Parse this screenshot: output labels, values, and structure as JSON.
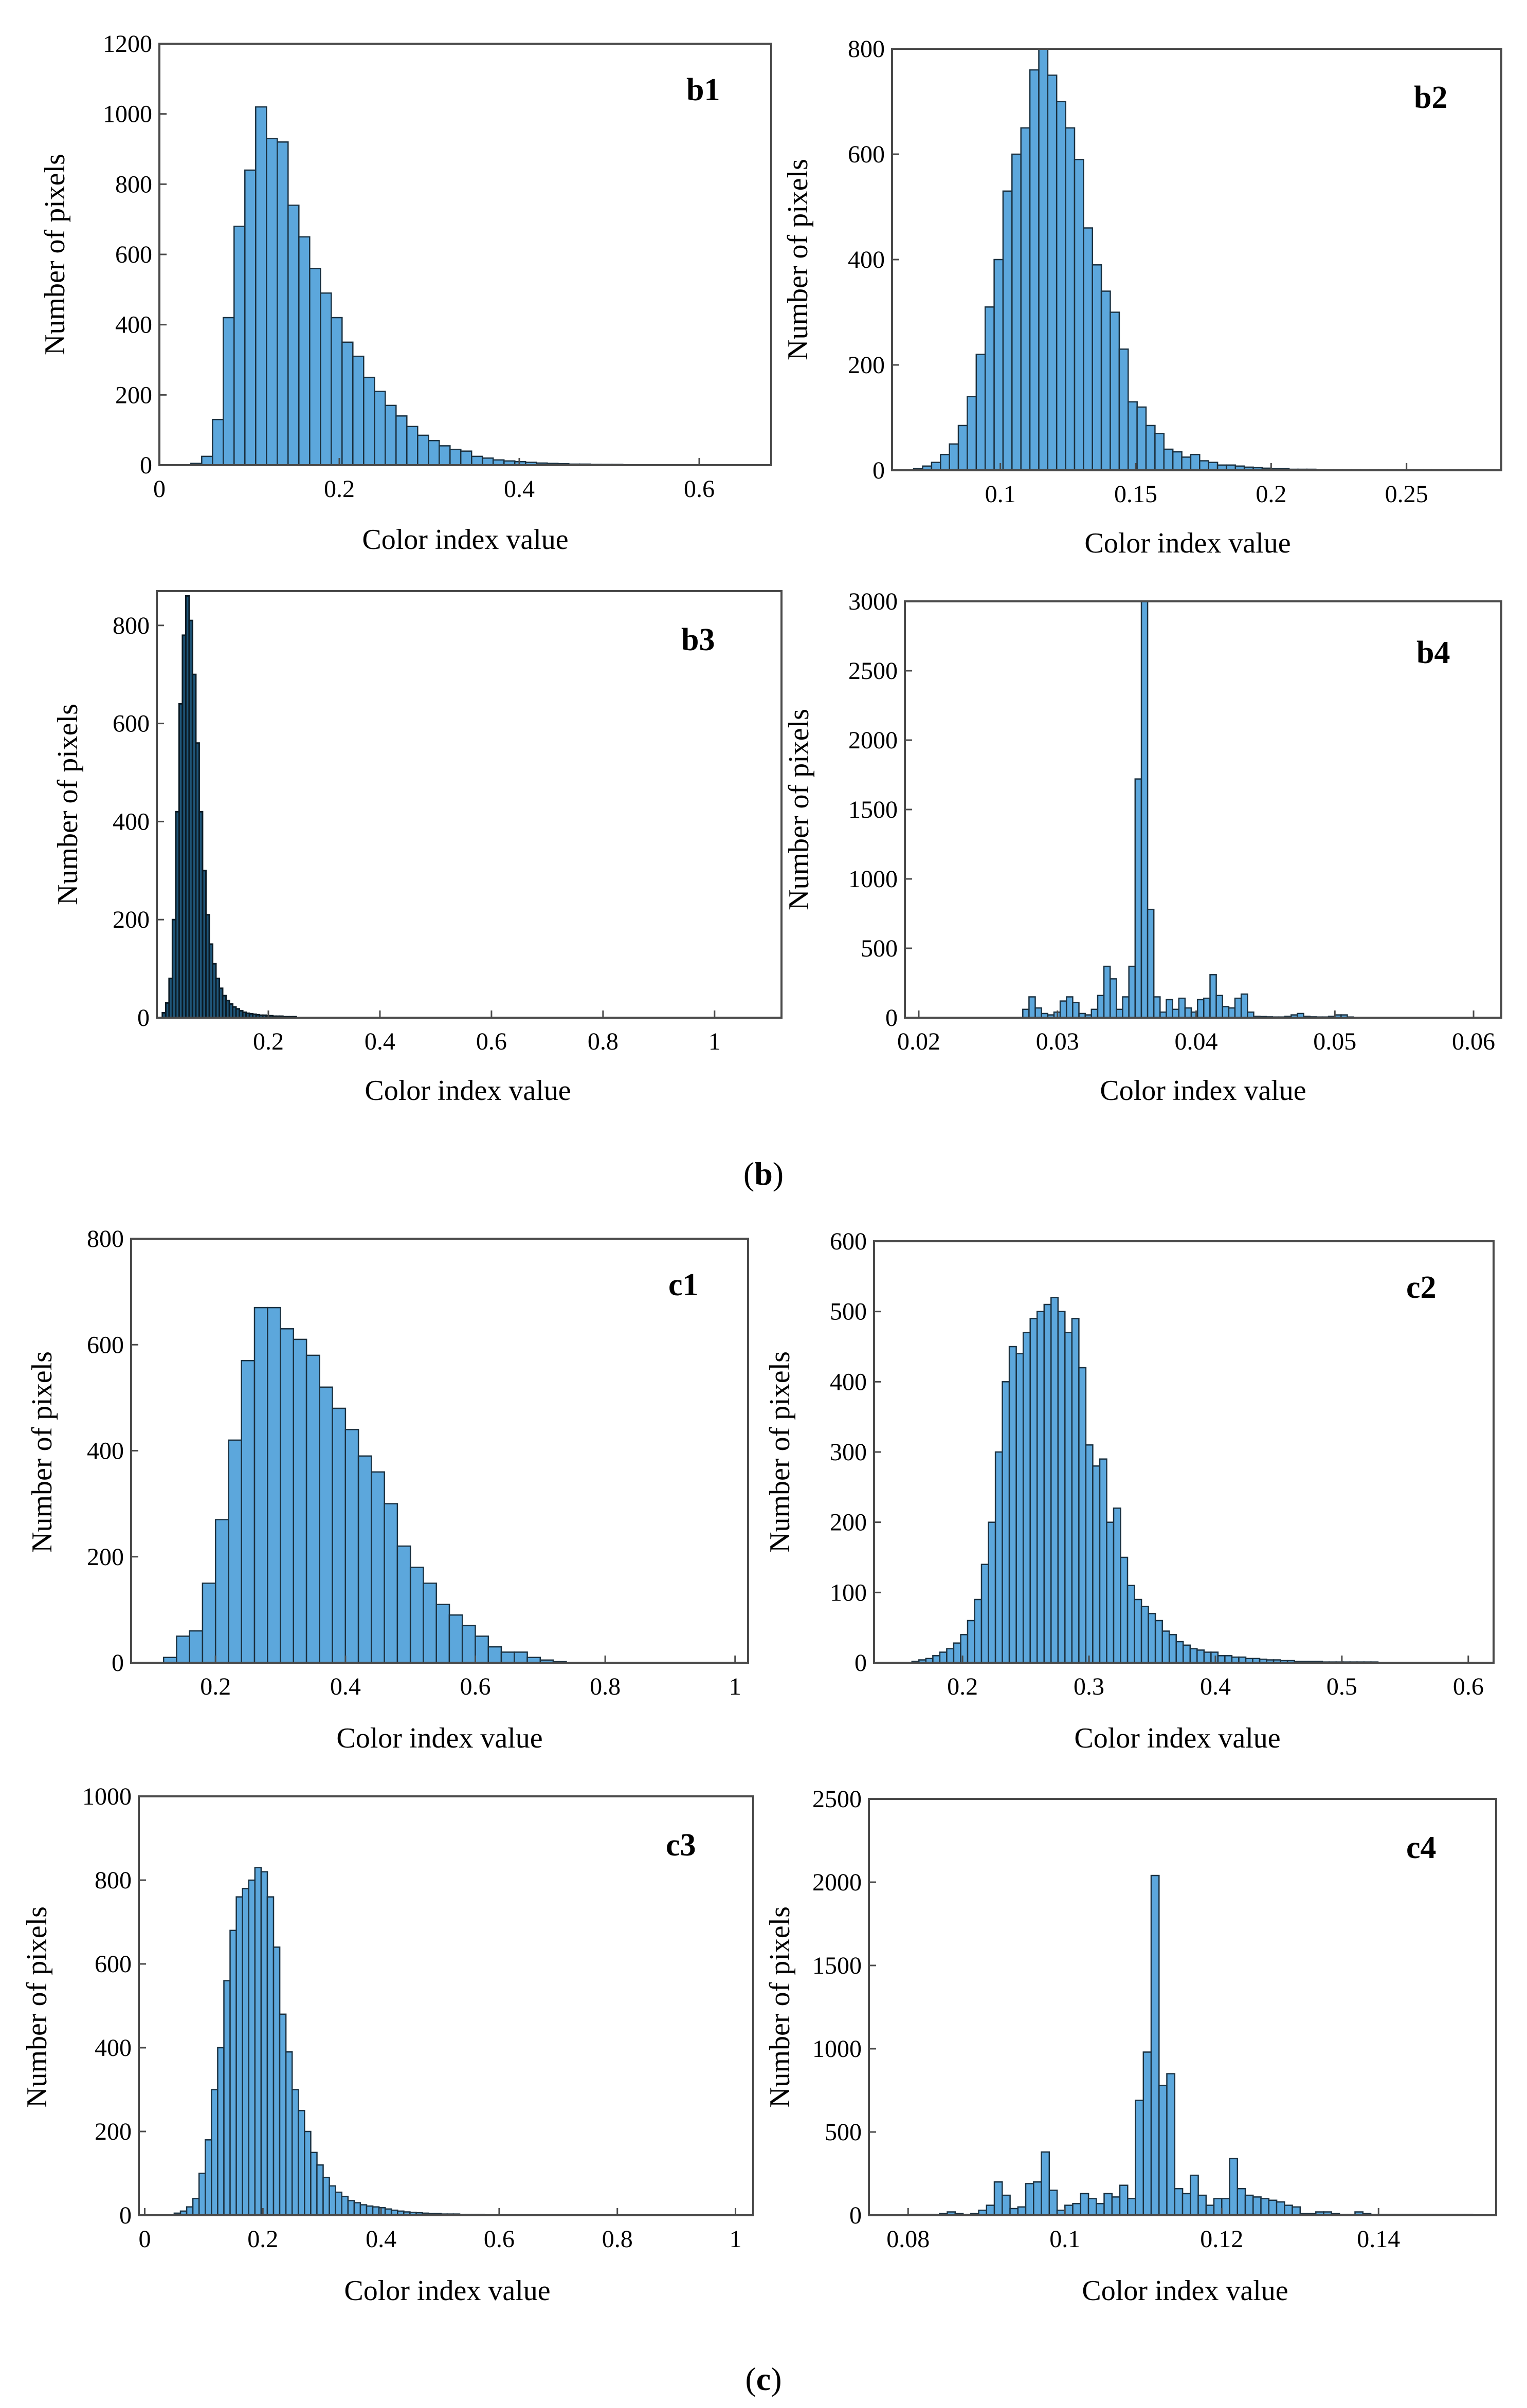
{
  "figure": {
    "caption_b_open": "(",
    "caption_b_letter": "b",
    "caption_b_close": ")",
    "caption_c_open": "(",
    "caption_c_letter": "c",
    "caption_c_close": ")"
  },
  "chart_data": [
    {
      "id": "b1",
      "type": "bar",
      "panel_label": "b1",
      "xlabel": "Color index value",
      "ylabel": "Number of pixels",
      "xlim": [
        0,
        0.68
      ],
      "ylim": [
        0,
        1200
      ],
      "xticks": [
        0,
        0.2,
        0.4,
        0.6
      ],
      "xtick_labels": [
        "0",
        "0.2",
        "0.4",
        "0.6"
      ],
      "yticks": [
        0,
        200,
        400,
        600,
        800,
        1000,
        1200
      ],
      "ytick_labels": [
        "0",
        "200",
        "400",
        "600",
        "800",
        "1000",
        "1200"
      ],
      "bin_start": 0.035,
      "bin_width": 0.012,
      "values": [
        5,
        25,
        130,
        420,
        680,
        840,
        1020,
        930,
        920,
        740,
        650,
        560,
        490,
        420,
        350,
        310,
        250,
        210,
        170,
        140,
        110,
        85,
        70,
        55,
        45,
        40,
        25,
        20,
        15,
        12,
        10,
        8,
        6,
        5,
        4,
        3,
        3,
        2,
        2,
        2,
        1,
        1,
        1,
        1,
        1,
        1,
        1,
        1,
        1,
        1,
        1,
        1
      ]
    },
    {
      "id": "b2",
      "type": "bar",
      "panel_label": "b2",
      "xlabel": "Color index value",
      "ylabel": "Number of pixels",
      "xlim": [
        0.06,
        0.285
      ],
      "ylim": [
        0,
        800
      ],
      "xticks": [
        0.1,
        0.15,
        0.2,
        0.25
      ],
      "xtick_labels": [
        "0.1",
        "0.15",
        "0.2",
        "0.25"
      ],
      "yticks": [
        0,
        200,
        400,
        600,
        800
      ],
      "ytick_labels": [
        "0",
        "200",
        "400",
        "600",
        "800"
      ],
      "bin_start": 0.068,
      "bin_width": 0.0033,
      "values": [
        3,
        8,
        15,
        30,
        50,
        85,
        140,
        220,
        310,
        400,
        530,
        600,
        650,
        760,
        800,
        750,
        700,
        650,
        590,
        460,
        390,
        340,
        300,
        230,
        130,
        120,
        85,
        70,
        40,
        35,
        25,
        30,
        18,
        15,
        10,
        10,
        8,
        6,
        5,
        4,
        3,
        3,
        2,
        2,
        2,
        1,
        1,
        1,
        1,
        1,
        1,
        1,
        1,
        1,
        1,
        1,
        1,
        1,
        1,
        1,
        1,
        1,
        1,
        1
      ]
    },
    {
      "id": "b3",
      "type": "bar",
      "panel_label": "b3",
      "xlabel": "Color index value",
      "ylabel": "Number of pixels",
      "xlim": [
        0,
        1.12
      ],
      "ylim": [
        0,
        870
      ],
      "xticks": [
        0.2,
        0.4,
        0.6,
        0.8,
        1
      ],
      "xtick_labels": [
        "0.2",
        "0.4",
        "0.6",
        "0.8",
        "1"
      ],
      "yticks": [
        0,
        200,
        400,
        600,
        800
      ],
      "ytick_labels": [
        "0",
        "200",
        "400",
        "600",
        "800"
      ],
      "bin_start": 0.01,
      "bin_width": 0.006,
      "values": [
        10,
        30,
        80,
        200,
        420,
        640,
        780,
        860,
        810,
        700,
        560,
        420,
        300,
        210,
        150,
        110,
        80,
        60,
        45,
        35,
        28,
        22,
        18,
        14,
        11,
        9,
        8,
        7,
        6,
        5,
        5,
        4,
        4,
        3,
        3,
        3,
        2,
        2,
        2,
        2
      ]
    },
    {
      "id": "b4",
      "type": "bar",
      "panel_label": "b4",
      "xlabel": "Color index value",
      "ylabel": "Number of pixels",
      "xlim": [
        0.019,
        0.062
      ],
      "ylim": [
        0,
        3000
      ],
      "xticks": [
        0.02,
        0.03,
        0.04,
        0.05,
        0.06
      ],
      "xtick_labels": [
        "0.02",
        "0.03",
        "0.04",
        "0.05",
        "0.06"
      ],
      "yticks": [
        0,
        500,
        1000,
        1500,
        2000,
        2500,
        3000
      ],
      "ytick_labels": [
        "0",
        "500",
        "1000",
        "1500",
        "2000",
        "2500",
        "3000"
      ],
      "bin_start": 0.0275,
      "bin_width": 0.00045,
      "values": [
        60,
        150,
        70,
        30,
        20,
        40,
        120,
        150,
        110,
        30,
        20,
        60,
        160,
        370,
        280,
        60,
        150,
        370,
        1720,
        3000,
        780,
        150,
        40,
        130,
        60,
        140,
        70,
        40,
        130,
        140,
        310,
        160,
        80,
        70,
        140,
        170,
        40,
        10,
        8,
        6,
        5,
        5,
        10,
        20,
        30,
        10,
        6,
        5,
        5,
        10,
        20,
        20,
        5
      ]
    },
    {
      "id": "c1",
      "type": "bar",
      "panel_label": "c1",
      "xlabel": "Color index value",
      "ylabel": "Number of pixels",
      "xlim": [
        0.07,
        1.02
      ],
      "ylim": [
        0,
        800
      ],
      "xticks": [
        0.2,
        0.4,
        0.6,
        0.8,
        1
      ],
      "xtick_labels": [
        "0.2",
        "0.4",
        "0.6",
        "0.8",
        "1"
      ],
      "yticks": [
        0,
        200,
        400,
        600,
        800
      ],
      "ytick_labels": [
        "0",
        "200",
        "400",
        "600",
        "800"
      ],
      "bin_start": 0.12,
      "bin_width": 0.02,
      "values": [
        10,
        50,
        60,
        150,
        270,
        420,
        570,
        670,
        670,
        630,
        610,
        580,
        520,
        480,
        440,
        390,
        360,
        300,
        220,
        180,
        150,
        110,
        90,
        70,
        50,
        30,
        20,
        20,
        10,
        5,
        2
      ]
    },
    {
      "id": "c2",
      "type": "bar",
      "panel_label": "c2",
      "xlabel": "Color index value",
      "ylabel": "Number of pixels",
      "xlim": [
        0.13,
        0.62
      ],
      "ylim": [
        0,
        600
      ],
      "xticks": [
        0.2,
        0.3,
        0.4,
        0.5,
        0.6
      ],
      "xtick_labels": [
        "0.2",
        "0.3",
        "0.4",
        "0.5",
        "0.6"
      ],
      "yticks": [
        0,
        100,
        200,
        300,
        400,
        500,
        600
      ],
      "ytick_labels": [
        "0",
        "100",
        "200",
        "300",
        "400",
        "500",
        "600"
      ],
      "bin_start": 0.16,
      "bin_width": 0.0055,
      "values": [
        2,
        4,
        6,
        10,
        15,
        20,
        28,
        40,
        60,
        90,
        140,
        200,
        300,
        400,
        450,
        440,
        470,
        490,
        500,
        510,
        520,
        500,
        470,
        490,
        420,
        310,
        280,
        290,
        200,
        220,
        150,
        110,
        90,
        80,
        70,
        60,
        45,
        40,
        30,
        25,
        20,
        18,
        15,
        15,
        10,
        10,
        8,
        8,
        6,
        6,
        5,
        4,
        4,
        3,
        3,
        2,
        2,
        2,
        2,
        1,
        1,
        1,
        1,
        1,
        1,
        1,
        1
      ]
    },
    {
      "id": "c3",
      "type": "bar",
      "panel_label": "c3",
      "xlabel": "Color index value",
      "ylabel": "Number of pixels",
      "xlim": [
        -0.01,
        1.03
      ],
      "ylim": [
        0,
        1000
      ],
      "xticks": [
        0,
        0.2,
        0.4,
        0.6,
        0.8,
        1
      ],
      "xtick_labels": [
        "0",
        "0.2",
        "0.4",
        "0.6",
        "0.8",
        "1"
      ],
      "yticks": [
        0,
        200,
        400,
        600,
        800,
        1000
      ],
      "ytick_labels": [
        "0",
        "200",
        "400",
        "600",
        "800",
        "1000"
      ],
      "bin_start": 0.05,
      "bin_width": 0.0105,
      "values": [
        5,
        10,
        20,
        40,
        100,
        180,
        300,
        400,
        560,
        680,
        760,
        780,
        800,
        830,
        820,
        760,
        640,
        480,
        390,
        300,
        250,
        200,
        150,
        120,
        90,
        70,
        55,
        45,
        35,
        30,
        25,
        22,
        20,
        18,
        15,
        12,
        10,
        8,
        7,
        6,
        5,
        4,
        4,
        3,
        3,
        3,
        2,
        2,
        2,
        2,
        1,
        1,
        1,
        1,
        1,
        1,
        1,
        1,
        1,
        1,
        1,
        1,
        1,
        1,
        1,
        1,
        1,
        1,
        1,
        1,
        1,
        1,
        1,
        1,
        1,
        1,
        1,
        1,
        1,
        1,
        1,
        1,
        1,
        1,
        1
      ]
    },
    {
      "id": "c4",
      "type": "bar",
      "panel_label": "c4",
      "xlabel": "Color index value",
      "ylabel": "Number of pixels",
      "xlim": [
        0.075,
        0.155
      ],
      "ylim": [
        0,
        2500
      ],
      "xticks": [
        0.08,
        0.1,
        0.12,
        0.14
      ],
      "xtick_labels": [
        "0.08",
        "0.1",
        "0.12",
        "0.14"
      ],
      "yticks": [
        0,
        500,
        1000,
        1500,
        2000,
        2500
      ],
      "ytick_labels": [
        "0",
        "500",
        "1000",
        "1500",
        "2000",
        "2500"
      ],
      "bin_start": 0.08,
      "bin_width": 0.001,
      "values": [
        5,
        5,
        5,
        5,
        10,
        20,
        10,
        5,
        10,
        30,
        60,
        200,
        120,
        40,
        50,
        190,
        200,
        380,
        150,
        30,
        60,
        70,
        130,
        100,
        70,
        130,
        110,
        180,
        100,
        690,
        980,
        2040,
        780,
        850,
        160,
        130,
        240,
        120,
        60,
        100,
        100,
        340,
        160,
        120,
        110,
        100,
        90,
        80,
        60,
        50,
        10,
        10,
        20,
        20,
        10,
        5,
        5,
        20,
        10,
        5,
        5,
        5,
        5,
        5,
        5,
        5,
        5,
        5,
        5,
        5,
        5,
        5
      ]
    }
  ]
}
